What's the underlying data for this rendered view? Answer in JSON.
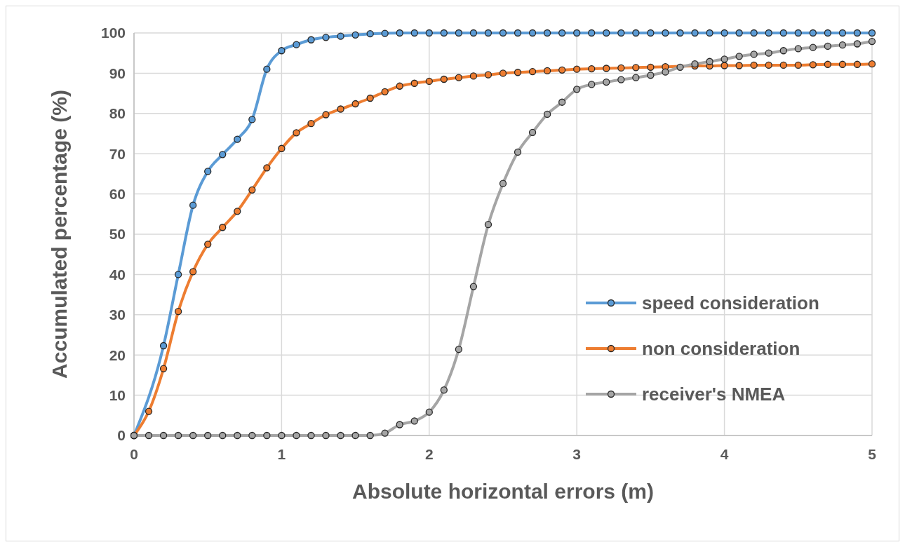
{
  "chart_data": {
    "type": "line",
    "xlabel": "Absolute horizontal errors (m)",
    "ylabel": "Accumulated percentage (%)",
    "x": [
      0,
      0.1,
      0.2,
      0.3,
      0.4,
      0.5,
      0.6,
      0.7,
      0.8,
      0.9,
      1,
      1.1,
      1.2,
      1.3,
      1.4,
      1.5,
      1.6,
      1.7,
      1.8,
      1.9,
      2,
      2.1,
      2.2,
      2.3,
      2.4,
      2.5,
      2.6,
      2.7,
      2.8,
      2.9,
      3,
      3.1,
      3.2,
      3.3,
      3.4,
      3.5,
      3.6,
      3.7,
      3.8,
      3.9,
      4,
      4.1,
      4.2,
      4.3,
      4.4,
      4.5,
      4.6,
      4.7,
      4.8,
      4.9,
      5
    ],
    "series": [
      {
        "name": "speed consideration",
        "color": "#5b9bd5",
        "values": [
          0,
          null,
          22.3,
          40,
          57.2,
          65.6,
          69.8,
          73.6,
          78.5,
          91,
          95.6,
          97.1,
          98.3,
          98.9,
          99.2,
          99.5,
          99.8,
          99.9,
          100,
          100,
          100,
          100,
          100,
          100,
          100,
          100,
          100,
          100,
          100,
          100,
          100,
          100,
          100,
          100,
          100,
          100,
          100,
          100,
          100,
          100,
          100,
          100,
          100,
          100,
          100,
          100,
          100,
          100,
          100,
          100,
          100
        ]
      },
      {
        "name": "non consideration",
        "color": "#ed7d31",
        "values": [
          0,
          6,
          16.6,
          30.8,
          40.7,
          47.5,
          51.7,
          55.7,
          61,
          66.5,
          71.3,
          75.2,
          77.5,
          79.7,
          81.1,
          82.4,
          83.8,
          85.4,
          86.8,
          87.5,
          88,
          88.5,
          88.9,
          89.3,
          89.6,
          90,
          90.2,
          90.4,
          90.6,
          90.8,
          91,
          91.1,
          91.2,
          91.3,
          91.4,
          91.5,
          91.6,
          null,
          91.8,
          91.8,
          91.9,
          91.9,
          92,
          92,
          92,
          92,
          92.1,
          92.2,
          92.2,
          92.2,
          92.3
        ]
      },
      {
        "name": "receiver's NMEA",
        "color": "#a5a5a5",
        "values": [
          0,
          0,
          0,
          0,
          0,
          0,
          0,
          0,
          0,
          0,
          0,
          0,
          0,
          0,
          0,
          0,
          0,
          0.6,
          2.7,
          3.6,
          5.8,
          11.3,
          21.4,
          37,
          52.4,
          62.6,
          70.4,
          75.3,
          79.8,
          82.8,
          86,
          87.2,
          87.8,
          88.4,
          88.9,
          89.5,
          90.3,
          91.5,
          92.3,
          92.9,
          93.5,
          94.2,
          94.7,
          95,
          95.6,
          96.1,
          96.4,
          96.7,
          97,
          97.3,
          97.9
        ]
      }
    ],
    "xlim": [
      0,
      5
    ],
    "xticks": [
      0,
      1,
      2,
      3,
      4,
      5
    ],
    "ylim": [
      0,
      100
    ],
    "yticks": [
      0,
      10,
      20,
      30,
      40,
      50,
      60,
      70,
      80,
      90,
      100
    ],
    "grid": true,
    "legend": "right",
    "marker": "circle",
    "line_style": "solid"
  }
}
